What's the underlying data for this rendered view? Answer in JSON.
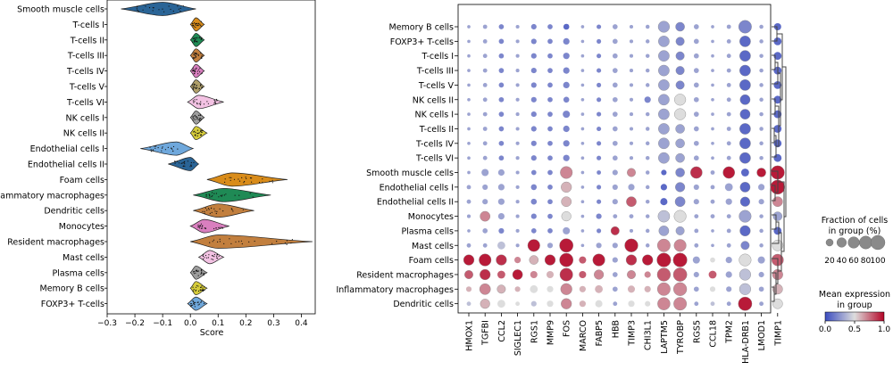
{
  "chart_data": [
    {
      "type": "violin",
      "title": "",
      "xlabel": "Score",
      "ylabel": "",
      "xlim": [
        -0.3,
        0.45
      ],
      "xticks": [
        "−0.3",
        "−0.2",
        "−0.1",
        "0.0",
        "0.1",
        "0.2",
        "0.3",
        "0.4"
      ],
      "categories": [
        {
          "name": "Smooth muscle cells",
          "min": -0.25,
          "max": 0.02,
          "median": -0.1,
          "color": "#2a6496"
        },
        {
          "name": "T-cells I",
          "min": 0.0,
          "max": 0.05,
          "median": 0.02,
          "color": "#d98c1a"
        },
        {
          "name": "T-cells II",
          "min": 0.0,
          "max": 0.05,
          "median": 0.02,
          "color": "#1f8a55"
        },
        {
          "name": "T-cells III",
          "min": 0.0,
          "max": 0.05,
          "median": 0.02,
          "color": "#c27f3e"
        },
        {
          "name": "T-cells IV",
          "min": 0.0,
          "max": 0.05,
          "median": 0.02,
          "color": "#d97fbf"
        },
        {
          "name": "T-cells V",
          "min": 0.0,
          "max": 0.05,
          "median": 0.02,
          "color": "#b0a06a"
        },
        {
          "name": "T-cells VI",
          "min": -0.01,
          "max": 0.12,
          "median": 0.03,
          "color": "#f3c2e3"
        },
        {
          "name": "NK cells I",
          "min": 0.0,
          "max": 0.05,
          "median": 0.02,
          "color": "#9e9e9e"
        },
        {
          "name": "NK cells II",
          "min": 0.0,
          "max": 0.06,
          "median": 0.02,
          "color": "#d6cc3a"
        },
        {
          "name": "Endothelial cells I",
          "min": -0.18,
          "max": 0.01,
          "median": -0.05,
          "color": "#6fa8dc"
        },
        {
          "name": "Endothelial cells II",
          "min": -0.08,
          "max": 0.03,
          "median": 0.0,
          "color": "#2a6496"
        },
        {
          "name": "Foam cells",
          "min": 0.06,
          "max": 0.35,
          "median": 0.15,
          "color": "#d98c1a"
        },
        {
          "name": "Inflammatory macrophages",
          "min": 0.01,
          "max": 0.29,
          "median": 0.12,
          "color": "#1f8a55"
        },
        {
          "name": "Dendritic cells",
          "min": 0.01,
          "max": 0.23,
          "median": 0.1,
          "color": "#c27f3e"
        },
        {
          "name": "Monocytes",
          "min": 0.0,
          "max": 0.14,
          "median": 0.05,
          "color": "#d97fbf"
        },
        {
          "name": "Resident macrophages",
          "min": 0.0,
          "max": 0.44,
          "median": 0.1,
          "color": "#c27f3e"
        },
        {
          "name": "Mast cells",
          "min": 0.03,
          "max": 0.12,
          "median": 0.07,
          "color": "#f3c2e3"
        },
        {
          "name": "Plasma cells",
          "min": 0.0,
          "max": 0.06,
          "median": 0.02,
          "color": "#9e9e9e"
        },
        {
          "name": "Memory B cells",
          "min": 0.0,
          "max": 0.06,
          "median": 0.02,
          "color": "#d6cc3a"
        },
        {
          "name": "FOXP3+ T-cells",
          "min": -0.01,
          "max": 0.06,
          "median": 0.02,
          "color": "#6fa8dc"
        }
      ]
    },
    {
      "type": "dotplot",
      "title": "",
      "rows": [
        "Memory B cells",
        "FOXP3+ T-cells",
        "T-cells I",
        "T-cells III",
        "T-cells V",
        "NK cells II",
        "NK cells I",
        "T-cells II",
        "T-cells IV",
        "T-cells VI",
        "Smooth muscle cells",
        "Endothelial cells I",
        "Endothelial cells II",
        "Monocytes",
        "Plasma cells",
        "Mast cells",
        "Foam cells",
        "Resident macrophages",
        "Inflammatory macrophages",
        "Dendritic cells"
      ],
      "genes": [
        "HMOX1",
        "TGFBI",
        "CCL2",
        "SIGLEC1",
        "RGS1",
        "MMP9",
        "FOS",
        "MARCO",
        "FABP5",
        "HBB",
        "TIMP3",
        "CHI3L1",
        "LAPTM5",
        "TYROBP",
        "RGS5",
        "CCL18",
        "TPM2",
        "HLA-DRB1",
        "LMOD1",
        "TIMP1"
      ],
      "fraction_pct": [
        [
          2,
          5,
          8,
          3,
          10,
          8,
          12,
          2,
          6,
          8,
          3,
          4,
          60,
          35,
          8,
          2,
          5,
          80,
          4,
          20
        ],
        [
          2,
          5,
          8,
          3,
          10,
          8,
          15,
          2,
          6,
          8,
          3,
          4,
          55,
          30,
          8,
          2,
          5,
          55,
          4,
          25
        ],
        [
          2,
          5,
          8,
          3,
          10,
          8,
          15,
          2,
          6,
          8,
          3,
          4,
          55,
          30,
          8,
          2,
          5,
          55,
          4,
          25
        ],
        [
          2,
          5,
          8,
          3,
          10,
          8,
          15,
          2,
          6,
          8,
          3,
          4,
          55,
          30,
          8,
          2,
          5,
          55,
          4,
          25
        ],
        [
          2,
          5,
          8,
          3,
          10,
          8,
          15,
          2,
          6,
          8,
          3,
          4,
          55,
          30,
          8,
          2,
          5,
          55,
          4,
          25
        ],
        [
          2,
          5,
          8,
          3,
          10,
          8,
          12,
          2,
          6,
          8,
          3,
          15,
          55,
          60,
          8,
          2,
          5,
          45,
          4,
          25
        ],
        [
          2,
          5,
          8,
          3,
          10,
          8,
          20,
          2,
          6,
          8,
          3,
          4,
          55,
          60,
          8,
          2,
          5,
          45,
          4,
          25
        ],
        [
          2,
          5,
          8,
          3,
          10,
          8,
          15,
          2,
          6,
          8,
          3,
          4,
          55,
          35,
          8,
          2,
          5,
          55,
          4,
          25
        ],
        [
          2,
          5,
          8,
          3,
          10,
          8,
          15,
          2,
          6,
          8,
          3,
          4,
          55,
          35,
          8,
          2,
          5,
          55,
          4,
          25
        ],
        [
          2,
          5,
          8,
          3,
          10,
          8,
          15,
          2,
          6,
          8,
          3,
          4,
          55,
          35,
          8,
          2,
          5,
          55,
          4,
          25
        ],
        [
          2,
          20,
          15,
          3,
          8,
          8,
          70,
          2,
          5,
          10,
          30,
          4,
          10,
          35,
          65,
          5,
          65,
          25,
          35,
          90
        ],
        [
          5,
          10,
          15,
          3,
          12,
          8,
          50,
          2,
          6,
          10,
          15,
          4,
          15,
          40,
          10,
          5,
          25,
          45,
          15,
          100
        ],
        [
          5,
          10,
          15,
          3,
          12,
          8,
          45,
          2,
          6,
          10,
          45,
          4,
          20,
          45,
          10,
          5,
          15,
          40,
          10,
          45
        ],
        [
          3,
          45,
          15,
          3,
          10,
          8,
          40,
          2,
          10,
          5,
          5,
          4,
          65,
          70,
          5,
          5,
          5,
          70,
          4,
          35
        ],
        [
          2,
          8,
          10,
          3,
          8,
          8,
          20,
          2,
          6,
          30,
          3,
          4,
          45,
          30,
          5,
          2,
          5,
          50,
          4,
          25
        ],
        [
          5,
          5,
          25,
          3,
          70,
          10,
          90,
          2,
          10,
          10,
          85,
          4,
          80,
          70,
          5,
          2,
          5,
          30,
          4,
          55
        ],
        [
          50,
          70,
          50,
          15,
          35,
          50,
          90,
          20,
          70,
          10,
          50,
          50,
          95,
          95,
          20,
          8,
          15,
          70,
          20,
          65
        ],
        [
          30,
          50,
          25,
          45,
          20,
          20,
          80,
          20,
          40,
          8,
          30,
          15,
          85,
          90,
          10,
          25,
          15,
          60,
          10,
          50
        ],
        [
          10,
          55,
          30,
          10,
          25,
          15,
          60,
          15,
          25,
          8,
          20,
          15,
          80,
          85,
          8,
          10,
          10,
          60,
          8,
          45
        ],
        [
          5,
          40,
          25,
          5,
          10,
          15,
          50,
          15,
          20,
          5,
          15,
          10,
          75,
          80,
          5,
          5,
          5,
          90,
          5,
          45
        ]
      ],
      "mean_expression": [
        [
          0.3,
          0.3,
          0.2,
          0.3,
          0.2,
          0.2,
          0.1,
          0.3,
          0.2,
          0.3,
          0.3,
          0.3,
          0.3,
          0.2,
          0.3,
          0.3,
          0.3,
          0.2,
          0.3,
          0.1
        ],
        [
          0.3,
          0.3,
          0.2,
          0.3,
          0.2,
          0.2,
          0.2,
          0.3,
          0.2,
          0.3,
          0.3,
          0.3,
          0.3,
          0.2,
          0.3,
          0.3,
          0.3,
          0.1,
          0.3,
          0.1
        ],
        [
          0.3,
          0.3,
          0.2,
          0.3,
          0.2,
          0.2,
          0.2,
          0.3,
          0.2,
          0.3,
          0.3,
          0.3,
          0.3,
          0.2,
          0.3,
          0.3,
          0.3,
          0.1,
          0.3,
          0.1
        ],
        [
          0.3,
          0.3,
          0.2,
          0.3,
          0.2,
          0.2,
          0.2,
          0.3,
          0.2,
          0.3,
          0.3,
          0.3,
          0.3,
          0.2,
          0.3,
          0.3,
          0.3,
          0.1,
          0.3,
          0.1
        ],
        [
          0.3,
          0.3,
          0.2,
          0.3,
          0.2,
          0.2,
          0.2,
          0.3,
          0.2,
          0.3,
          0.3,
          0.3,
          0.3,
          0.2,
          0.3,
          0.3,
          0.3,
          0.1,
          0.3,
          0.1
        ],
        [
          0.3,
          0.3,
          0.2,
          0.3,
          0.2,
          0.2,
          0.2,
          0.3,
          0.2,
          0.3,
          0.3,
          0.2,
          0.3,
          0.5,
          0.3,
          0.3,
          0.3,
          0.1,
          0.3,
          0.1
        ],
        [
          0.3,
          0.3,
          0.2,
          0.3,
          0.2,
          0.2,
          0.2,
          0.3,
          0.2,
          0.3,
          0.3,
          0.3,
          0.3,
          0.5,
          0.3,
          0.3,
          0.3,
          0.1,
          0.3,
          0.1
        ],
        [
          0.3,
          0.3,
          0.2,
          0.3,
          0.2,
          0.2,
          0.2,
          0.3,
          0.2,
          0.3,
          0.3,
          0.3,
          0.3,
          0.3,
          0.3,
          0.3,
          0.3,
          0.1,
          0.3,
          0.1
        ],
        [
          0.3,
          0.3,
          0.2,
          0.3,
          0.2,
          0.2,
          0.2,
          0.3,
          0.2,
          0.3,
          0.3,
          0.3,
          0.3,
          0.3,
          0.3,
          0.3,
          0.3,
          0.1,
          0.3,
          0.1
        ],
        [
          0.3,
          0.3,
          0.2,
          0.3,
          0.2,
          0.2,
          0.2,
          0.3,
          0.2,
          0.3,
          0.3,
          0.3,
          0.3,
          0.3,
          0.3,
          0.3,
          0.3,
          0.1,
          0.3,
          0.1
        ],
        [
          0.3,
          0.3,
          0.3,
          0.3,
          0.2,
          0.2,
          0.7,
          0.3,
          0.2,
          0.3,
          0.7,
          0.3,
          0.1,
          0.2,
          0.9,
          0.3,
          0.95,
          0.1,
          0.95,
          0.95
        ],
        [
          0.3,
          0.3,
          0.3,
          0.3,
          0.2,
          0.2,
          0.6,
          0.3,
          0.2,
          0.3,
          0.3,
          0.3,
          0.1,
          0.2,
          0.3,
          0.3,
          0.3,
          0.1,
          0.3,
          0.95
        ],
        [
          0.3,
          0.3,
          0.3,
          0.3,
          0.2,
          0.2,
          0.6,
          0.3,
          0.2,
          0.3,
          0.8,
          0.3,
          0.1,
          0.2,
          0.3,
          0.3,
          0.3,
          0.1,
          0.3,
          0.7
        ],
        [
          0.3,
          0.7,
          0.3,
          0.3,
          0.2,
          0.2,
          0.5,
          0.3,
          0.2,
          0.3,
          0.3,
          0.3,
          0.4,
          0.5,
          0.3,
          0.3,
          0.3,
          0.3,
          0.3,
          0.3
        ],
        [
          0.3,
          0.3,
          0.2,
          0.3,
          0.2,
          0.2,
          0.3,
          0.3,
          0.2,
          0.9,
          0.3,
          0.3,
          0.3,
          0.3,
          0.3,
          0.3,
          0.3,
          0.1,
          0.3,
          0.1
        ],
        [
          0.3,
          0.3,
          0.4,
          0.3,
          0.95,
          0.3,
          0.95,
          0.3,
          0.3,
          0.3,
          0.95,
          0.3,
          0.7,
          0.7,
          0.3,
          0.3,
          0.3,
          0.2,
          0.3,
          0.5
        ],
        [
          0.95,
          0.95,
          0.9,
          0.7,
          0.6,
          0.95,
          0.95,
          0.8,
          0.95,
          0.3,
          0.9,
          0.95,
          0.95,
          0.95,
          0.3,
          0.5,
          0.3,
          0.5,
          0.3,
          0.8
        ],
        [
          0.8,
          0.9,
          0.8,
          0.95,
          0.7,
          0.6,
          0.9,
          0.8,
          0.7,
          0.3,
          0.7,
          0.7,
          0.8,
          0.8,
          0.3,
          0.8,
          0.3,
          0.4,
          0.3,
          0.7
        ],
        [
          0.6,
          0.7,
          0.6,
          0.6,
          0.5,
          0.5,
          0.7,
          0.6,
          0.6,
          0.3,
          0.6,
          0.6,
          0.7,
          0.7,
          0.3,
          0.5,
          0.3,
          0.4,
          0.3,
          0.6
        ],
        [
          0.4,
          0.6,
          0.5,
          0.5,
          0.4,
          0.5,
          0.7,
          0.6,
          0.5,
          0.3,
          0.5,
          0.5,
          0.7,
          0.7,
          0.3,
          0.4,
          0.3,
          0.95,
          0.3,
          0.5
        ]
      ],
      "size_legend": {
        "title_line1": "Fraction of cells",
        "title_line2": "in group (%)",
        "values": [
          20,
          40,
          60,
          80,
          100
        ],
        "labels": [
          "20",
          "40",
          "60",
          "80",
          "100"
        ]
      },
      "color_legend": {
        "title_line1": "Mean expression",
        "title_line2": "in group",
        "ticks": [
          "0.0",
          "0.5",
          "1.0"
        ],
        "colormap": [
          "#3b4cc0",
          "#dddddd",
          "#b40426"
        ]
      },
      "dendrogram": {
        "order": [
          "Memory B cells",
          "FOXP3+ T-cells",
          "T-cells I",
          "T-cells III",
          "T-cells V",
          "NK cells II",
          "NK cells I",
          "T-cells II",
          "T-cells IV",
          "T-cells VI",
          "Smooth muscle cells",
          "Endothelial cells I",
          "Endothelial cells II",
          "Monocytes",
          "Plasma cells",
          "Mast cells",
          "Foam cells",
          "Resident macrophages",
          "Inflammatory macrophages",
          "Dendritic cells"
        ]
      }
    }
  ]
}
